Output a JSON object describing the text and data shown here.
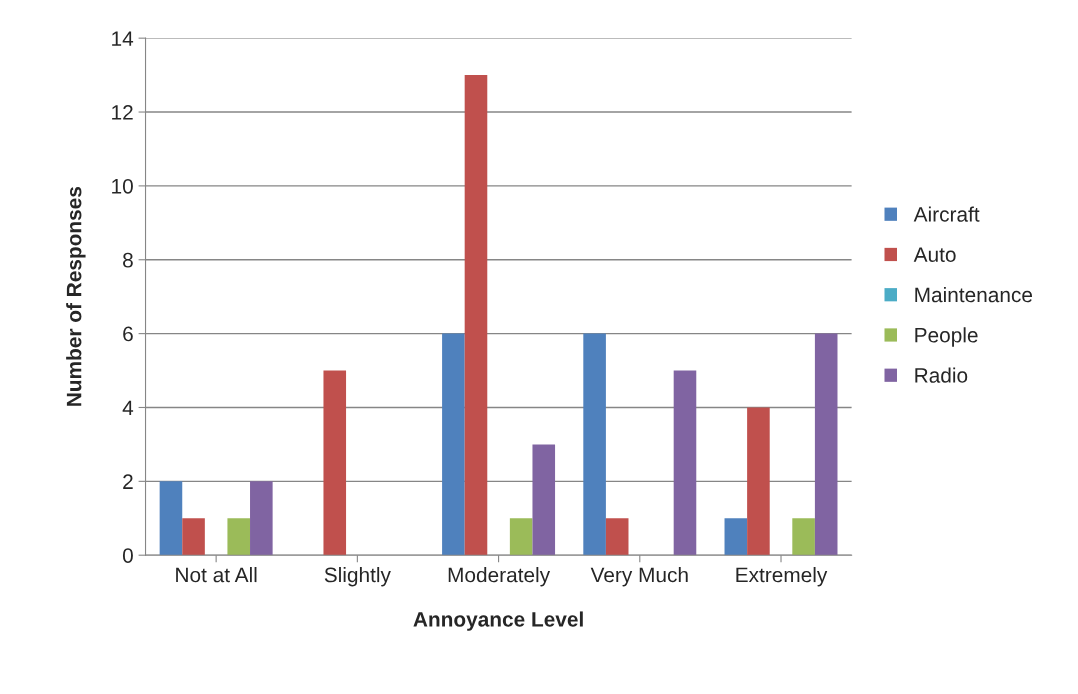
{
  "chart_data": {
    "type": "bar",
    "xlabel": "Annoyance Level",
    "ylabel": "Number of Responses",
    "categories": [
      "Not at All",
      "Slightly",
      "Moderately",
      "Very Much",
      "Extremely"
    ],
    "series": [
      {
        "name": "Aircraft",
        "color": "#4f81bd",
        "values": [
          2,
          0,
          6,
          6,
          1
        ]
      },
      {
        "name": "Auto",
        "color": "#c0504d",
        "values": [
          1,
          5,
          13,
          1,
          4
        ]
      },
      {
        "name": "Maintenance",
        "color": "#4bacc6",
        "values": [
          0,
          0,
          0,
          0,
          0
        ]
      },
      {
        "name": "People",
        "color": "#9bbb59",
        "values": [
          1,
          0,
          1,
          0,
          1
        ]
      },
      {
        "name": "Radio",
        "color": "#8064a2",
        "values": [
          2,
          0,
          3,
          5,
          6
        ]
      }
    ],
    "ylim": [
      0,
      14
    ],
    "yticks": [
      0,
      2,
      4,
      6,
      8,
      10,
      12,
      14
    ],
    "grid": "y",
    "legend": "right"
  }
}
